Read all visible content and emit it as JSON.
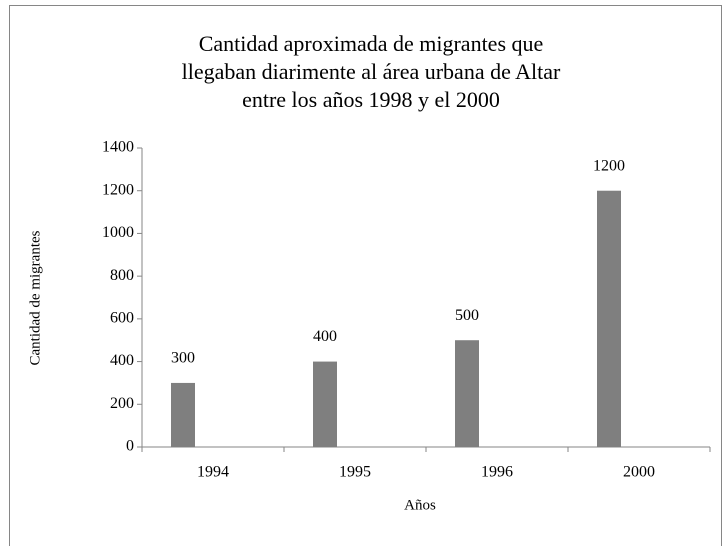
{
  "chart_data": {
    "type": "bar",
    "title": [
      "Cantidad aproximada de migrantes que",
      "llegaban diarimente al área urbana de Altar",
      "entre los años 1998 y el 2000"
    ],
    "xlabel": "Años",
    "ylabel": "Cantidad de migrantes",
    "categories": [
      "1994",
      "1995",
      "1996",
      "2000"
    ],
    "values": [
      300,
      400,
      500,
      1200
    ],
    "color": "#7f7f7f",
    "ylim": [
      0,
      1400
    ],
    "yticks": [
      0,
      200,
      400,
      600,
      800,
      1000,
      1200,
      1400
    ],
    "grid": false,
    "data_labels": true
  }
}
